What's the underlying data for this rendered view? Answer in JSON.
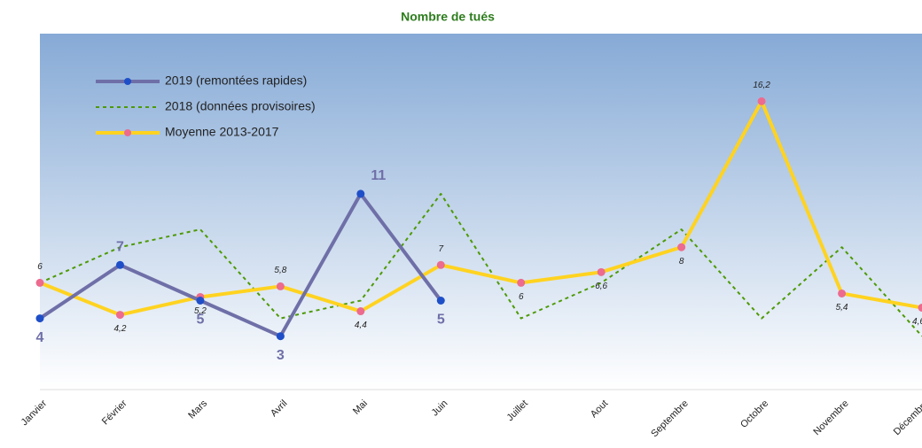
{
  "chart_data": {
    "type": "line",
    "title": "Nombre de tués",
    "categories": [
      "Janvier",
      "Février",
      "Mars",
      "Avril",
      "Mai",
      "Juin",
      "Juillet",
      "Aout",
      "Septembre",
      "Octobre",
      "Novembre",
      "Décembre"
    ],
    "series": [
      {
        "name": "2019 (remontées rapides)",
        "color": "#6f6fa8",
        "marker_color": "#1f4fc8",
        "dash": false,
        "values": [
          4,
          7,
          5,
          3,
          11,
          5,
          null,
          null,
          null,
          null,
          null,
          null
        ]
      },
      {
        "name": "2018 (données provisoires)",
        "color": "#4e9a06",
        "dash": true,
        "values": [
          6,
          8,
          9,
          4,
          5,
          11,
          4,
          6,
          9,
          4,
          8,
          3
        ]
      },
      {
        "name": "Moyenne 2013-2017",
        "color": "#ffd320",
        "marker_color": "#ec6b8f",
        "dash": false,
        "values": [
          6,
          4.2,
          5.2,
          5.8,
          4.4,
          7,
          6,
          6.6,
          8,
          16.2,
          5.4,
          4.6
        ],
        "value_labels": [
          "6",
          "4,2",
          "5,2",
          "5,8",
          "4,4",
          "7",
          "6",
          "6,6",
          "8",
          "16,2",
          "5,4",
          "4,6"
        ]
      }
    ],
    "ylim": [
      0,
      20
    ],
    "legend": "top-left"
  }
}
